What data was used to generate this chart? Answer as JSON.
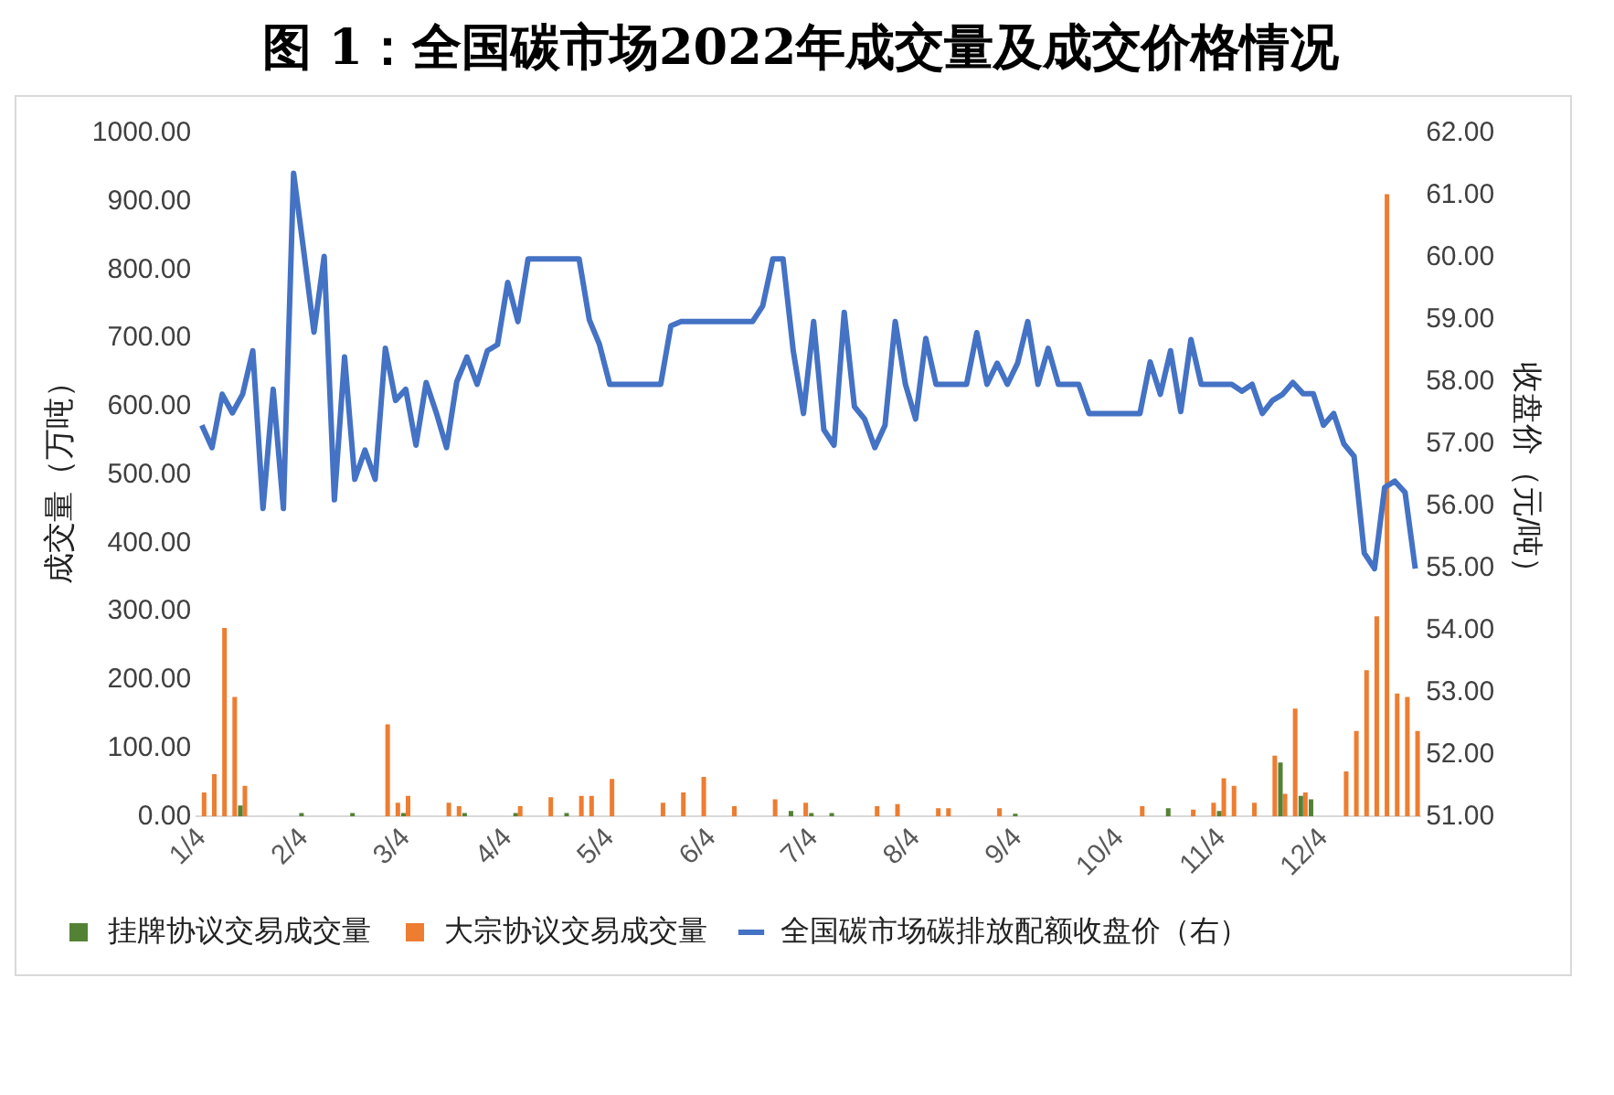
{
  "chart_data": {
    "type": "bar",
    "title": "图 1：全国碳市场2022年成交量及成交价格情况",
    "ylabel": "成交量（万吨）",
    "y2label": "收盘价（元/吨）",
    "categories": [
      "1/4",
      null,
      null,
      null,
      null,
      null,
      null,
      null,
      null,
      null,
      "2/4",
      null,
      null,
      null,
      null,
      null,
      null,
      null,
      null,
      null,
      "3/4",
      null,
      null,
      null,
      null,
      null,
      null,
      null,
      null,
      null,
      "4/4",
      null,
      null,
      null,
      null,
      null,
      null,
      null,
      null,
      null,
      "5/4",
      null,
      null,
      null,
      null,
      null,
      null,
      null,
      null,
      null,
      "6/4",
      null,
      null,
      null,
      null,
      null,
      null,
      null,
      null,
      null,
      "7/4",
      null,
      null,
      null,
      null,
      null,
      null,
      null,
      null,
      null,
      "8/4",
      null,
      null,
      null,
      null,
      null,
      null,
      null,
      null,
      null,
      "9/4",
      null,
      null,
      null,
      null,
      null,
      null,
      null,
      null,
      null,
      "10/4",
      null,
      null,
      null,
      null,
      null,
      null,
      null,
      null,
      null,
      "11/4",
      null,
      null,
      null,
      null,
      null,
      null,
      null,
      null,
      null,
      "12/4",
      null,
      null,
      null,
      null,
      null,
      null,
      null,
      null,
      null
    ],
    "series": [
      {
        "name": "挂牌协议交易成交量",
        "color": "#548235",
        "values": [
          null,
          null,
          null,
          null,
          16,
          null,
          null,
          null,
          null,
          null,
          5,
          null,
          null,
          null,
          null,
          5,
          null,
          null,
          null,
          null,
          5,
          null,
          null,
          null,
          null,
          null,
          5,
          null,
          null,
          null,
          null,
          5,
          null,
          null,
          null,
          null,
          5,
          null,
          null,
          null,
          null,
          null,
          null,
          null,
          null,
          null,
          null,
          null,
          null,
          null,
          null,
          null,
          null,
          null,
          null,
          null,
          null,
          null,
          8,
          null,
          5,
          null,
          5,
          null,
          null,
          null,
          null,
          null,
          null,
          null,
          null,
          null,
          null,
          null,
          null,
          null,
          null,
          null,
          null,
          null,
          4,
          null,
          null,
          null,
          null,
          null,
          null,
          null,
          null,
          null,
          null,
          null,
          null,
          null,
          null,
          12,
          null,
          null,
          null,
          null,
          8,
          null,
          null,
          null,
          null,
          null,
          79,
          null,
          30,
          25,
          null,
          null,
          null,
          null,
          null,
          null,
          null,
          null,
          null,
          null
        ]
      },
      {
        "name": "大宗协议交易成交量",
        "color": "#ed7d31",
        "values": [
          35,
          62,
          276,
          175,
          45,
          null,
          null,
          null,
          null,
          null,
          null,
          null,
          null,
          null,
          null,
          null,
          null,
          null,
          135,
          20,
          30,
          null,
          null,
          null,
          20,
          15,
          null,
          null,
          null,
          null,
          null,
          15,
          null,
          null,
          28,
          null,
          null,
          30,
          30,
          null,
          55,
          null,
          null,
          null,
          null,
          20,
          null,
          35,
          null,
          58,
          null,
          null,
          15,
          null,
          null,
          null,
          25,
          null,
          null,
          20,
          null,
          null,
          null,
          null,
          null,
          null,
          15,
          null,
          18,
          null,
          null,
          null,
          12,
          12,
          null,
          null,
          null,
          null,
          12,
          null,
          null,
          null,
          null,
          null,
          null,
          null,
          null,
          null,
          null,
          null,
          null,
          null,
          15,
          null,
          null,
          null,
          null,
          10,
          null,
          20,
          56,
          45,
          null,
          20,
          null,
          89,
          33,
          158,
          35,
          null,
          null,
          null,
          66,
          125,
          214,
          293,
          911,
          180,
          175,
          125
        ]
      },
      {
        "name": "全国碳市场碳排放配额收盘价（右）",
        "type": "line",
        "axis": "y2",
        "color": "#4472c4",
        "values": [
          57.3,
          56.94,
          57.8,
          57.5,
          57.8,
          58.5,
          55.96,
          57.88,
          55.96,
          61.36,
          60.1,
          58.8,
          60.02,
          56.1,
          58.4,
          56.43,
          56.9,
          56.43,
          58.54,
          57.7,
          57.88,
          56.98,
          57.99,
          57.5,
          56.94,
          58.0,
          58.4,
          57.96,
          58.5,
          58.6,
          59.6,
          58.97,
          59.98,
          59.98,
          59.98,
          59.98,
          59.98,
          59.98,
          59.0,
          58.6,
          57.96,
          57.96,
          57.96,
          57.96,
          57.96,
          57.96,
          58.9,
          58.97,
          58.97,
          58.97,
          58.97,
          58.97,
          58.97,
          58.97,
          58.97,
          59.22,
          59.98,
          59.98,
          58.5,
          57.49,
          58.97,
          57.23,
          56.98,
          59.12,
          57.6,
          57.4,
          56.94,
          57.3,
          58.97,
          57.96,
          57.4,
          58.7,
          57.96,
          57.96,
          57.96,
          57.96,
          58.79,
          57.96,
          58.3,
          57.96,
          58.3,
          58.97,
          57.96,
          58.54,
          57.96,
          57.96,
          57.96,
          57.49,
          57.49,
          57.49,
          57.49,
          57.49,
          57.49,
          58.32,
          57.8,
          58.5,
          57.52,
          58.68,
          57.96,
          57.96,
          57.96,
          57.96,
          57.85,
          57.96,
          57.49,
          57.7,
          57.8,
          57.99,
          57.81,
          57.81,
          57.3,
          57.49,
          57.0,
          56.8,
          55.24,
          54.99,
          56.3,
          56.4,
          56.22,
          54.99
        ]
      }
    ],
    "ylim": [
      0,
      1000
    ],
    "yticks": [
      {
        "value": 0,
        "label": "0.00"
      },
      {
        "value": 100,
        "label": "100.00"
      },
      {
        "value": 200,
        "label": "200.00"
      },
      {
        "value": 300,
        "label": "300.00"
      },
      {
        "value": 400,
        "label": "400.00"
      },
      {
        "value": 500,
        "label": "500.00"
      },
      {
        "value": 600,
        "label": "600.00"
      },
      {
        "value": 700,
        "label": "700.00"
      },
      {
        "value": 800,
        "label": "800.00"
      },
      {
        "value": 900,
        "label": "900.00"
      },
      {
        "value": 1000,
        "label": "1000.00"
      }
    ],
    "y2lim": [
      51,
      62
    ],
    "y2ticks": [
      {
        "value": 51,
        "label": "51.00"
      },
      {
        "value": 52,
        "label": "52.00"
      },
      {
        "value": 53,
        "label": "53.00"
      },
      {
        "value": 54,
        "label": "54.00"
      },
      {
        "value": 55,
        "label": "55.00"
      },
      {
        "value": 56,
        "label": "56.00"
      },
      {
        "value": 57,
        "label": "57.00"
      },
      {
        "value": 58,
        "label": "58.00"
      },
      {
        "value": 59,
        "label": "59.00"
      },
      {
        "value": 60,
        "label": "60.00"
      },
      {
        "value": 61,
        "label": "61.00"
      },
      {
        "value": 62,
        "label": "62.00"
      }
    ],
    "legend": "bottom"
  }
}
